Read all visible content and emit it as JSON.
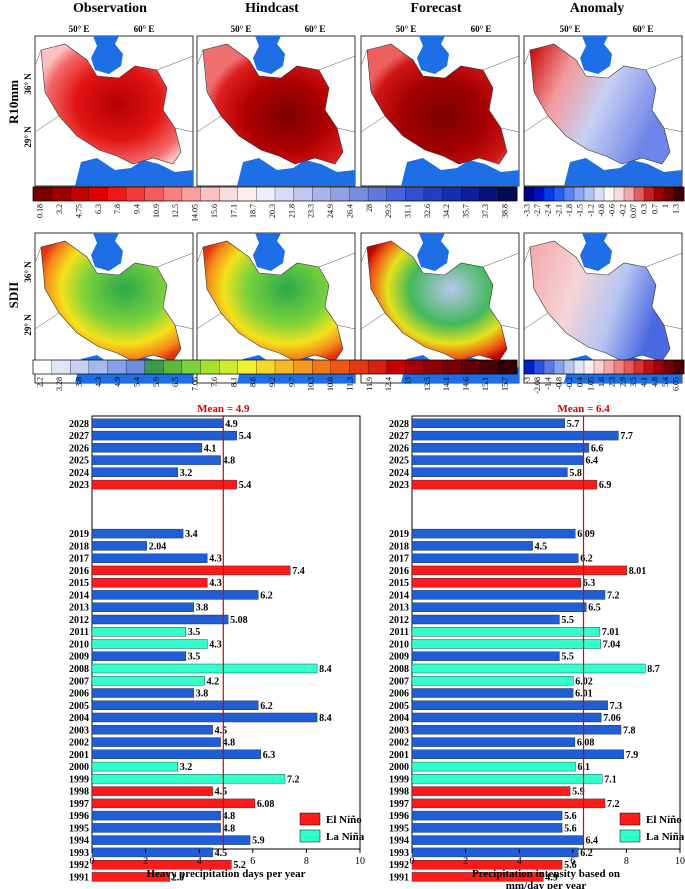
{
  "figure": {
    "column_titles": [
      "Observation",
      "Hindcast",
      "Forecast",
      "Anomaly"
    ],
    "row_labels": [
      "R10mm",
      "SDII"
    ],
    "lon_labels": [
      "50° E",
      "60° E"
    ],
    "lat_labels": [
      "36° N",
      "29° N"
    ]
  },
  "colorbars": {
    "r10mm_main": [
      "0.18",
      "3.2",
      "4.75",
      "6.3",
      "7.8",
      "9.4",
      "10.9",
      "12.5",
      "14.05",
      "15.6",
      "17.1",
      "18.7",
      "20.3",
      "21.8",
      "23.3",
      "24.9",
      "26.4",
      "28",
      "29.5",
      "31.1",
      "32.6",
      "34.2",
      "35.7",
      "37.3",
      "38.8"
    ],
    "r10mm_anomaly": [
      "-3.3",
      "-2.7",
      "-2.4",
      "-2.1",
      "-1.8",
      "-1.5",
      "-1.2",
      "-0.8",
      "-0.6",
      "-0.2",
      "0.07",
      "0.3",
      "0.7",
      "1",
      "1.3"
    ],
    "sdii_main": [
      "2.2",
      "3.28",
      "3.8",
      "4.3",
      "4.9",
      "5.4",
      "5.9",
      "6.5",
      "7.06",
      "7.6",
      "8.1",
      "8.6",
      "9.2",
      "9.7",
      "10.3",
      "10.8",
      "11.3",
      "11.9",
      "12.4",
      "13",
      "13.5",
      "14.1",
      "14.6",
      "15.1",
      "15.7"
    ],
    "sdii_anomaly": [
      "-3",
      "-2.08",
      "-1.4",
      "-0.8",
      "-0.2",
      "0.4",
      "1.05",
      "1.6",
      "2.3",
      "2.9",
      "3.5",
      "4.1",
      "4.8",
      "5.4",
      "6.05"
    ]
  },
  "colors": {
    "el_nino": "#ff1a1a",
    "la_nina": "#33ffcc",
    "normal": "#1f5ed6",
    "mean_line": "#e00000",
    "sea": "#1e6fe6"
  },
  "chart_data": [
    {
      "type": "bar",
      "orientation": "horizontal",
      "xlabel": "Heavy precipitation days per year",
      "xlim": [
        0,
        10
      ],
      "xticks": [
        "0",
        "2",
        "4",
        "6",
        "8",
        "10"
      ],
      "mean_label": "Mean = 4.9",
      "mean": 4.9,
      "legend": [
        "El Niño",
        "La Niña"
      ],
      "legend_position": "bottom-right",
      "years": [
        "2028",
        "2027",
        "2026",
        "2025",
        "2024",
        "2023",
        "2019",
        "2018",
        "2017",
        "2016",
        "2015",
        "2014",
        "2013",
        "2012",
        "2011",
        "2010",
        "2009",
        "2008",
        "2007",
        "2006",
        "2005",
        "2004",
        "2003",
        "2002",
        "2001",
        "2000",
        "1999",
        "1998",
        "1997",
        "1996",
        "1995",
        "1994",
        "1993",
        "1992",
        "1991"
      ],
      "values": [
        4.9,
        5.4,
        4.1,
        4.8,
        3.2,
        5.4,
        3.4,
        2.04,
        4.3,
        7.4,
        4.3,
        6.2,
        3.8,
        5.08,
        3.5,
        4.3,
        3.5,
        8.4,
        4.2,
        3.8,
        6.2,
        8.4,
        4.5,
        4.8,
        6.3,
        3.2,
        7.2,
        4.5,
        6.08,
        4.8,
        4.8,
        5.9,
        4.5,
        5.2,
        2.9
      ],
      "labels": [
        "4.9",
        "5.4",
        "4.1",
        "4.8",
        "3.2",
        "5.4",
        "3.4",
        "2.04",
        "4.3",
        "7.4",
        "4.3",
        "6.2",
        "3.8",
        "5.08",
        "3.5",
        "4.3",
        "3.5",
        "8.4",
        "4.2",
        "3.8",
        "6.2",
        "8.4",
        "4.5",
        "4.8",
        "6.3",
        "3.2",
        "7.2",
        "4.5",
        "6.08",
        "4.8",
        "4.8",
        "5.9",
        "4.5",
        "5.2",
        "2.9"
      ],
      "enso": [
        "n",
        "n",
        "n",
        "n",
        "n",
        "e",
        "n",
        "n",
        "n",
        "e",
        "e",
        "n",
        "n",
        "n",
        "l",
        "l",
        "n",
        "l",
        "l",
        "n",
        "n",
        "n",
        "n",
        "n",
        "n",
        "l",
        "l",
        "e",
        "e",
        "n",
        "n",
        "n",
        "n",
        "e",
        "e"
      ]
    },
    {
      "type": "bar",
      "orientation": "horizontal",
      "xlabel": "Precipitation intensity based on mm/day per year",
      "xlim": [
        0,
        10
      ],
      "xticks": [
        "0",
        "2",
        "4",
        "6",
        "8",
        "10"
      ],
      "mean_label": "Mean = 6.4",
      "mean": 6.4,
      "legend": [
        "El Niño",
        "La Niña"
      ],
      "legend_position": "bottom-right",
      "years": [
        "2028",
        "2027",
        "2026",
        "2025",
        "2024",
        "2023",
        "2019",
        "2018",
        "2017",
        "2016",
        "2015",
        "2014",
        "2013",
        "2012",
        "2011",
        "2010",
        "2009",
        "2008",
        "2007",
        "2006",
        "2005",
        "2004",
        "2003",
        "2002",
        "2001",
        "2000",
        "1999",
        "1998",
        "1997",
        "1996",
        "1995",
        "1994",
        "1993",
        "1992",
        "1991"
      ],
      "values": [
        5.7,
        7.7,
        6.6,
        6.4,
        5.8,
        6.9,
        6.09,
        4.5,
        6.2,
        8.01,
        6.3,
        7.2,
        6.5,
        5.5,
        7.01,
        7.04,
        5.5,
        8.7,
        6.02,
        6.01,
        7.3,
        7.06,
        7.8,
        6.08,
        7.9,
        6.1,
        7.1,
        5.9,
        7.2,
        5.6,
        5.6,
        6.4,
        6.2,
        5.6,
        4.9
      ],
      "labels": [
        "5.7",
        "7.7",
        "6.6",
        "6.4",
        "5.8",
        "6.9",
        "6.09",
        "4.5",
        "6.2",
        "8.01",
        "6.3",
        "7.2",
        "6.5",
        "5.5",
        "7.01",
        "7.04",
        "5.5",
        "8.7",
        "6.02",
        "6.01",
        "7.3",
        "7.06",
        "7.8",
        "6.08",
        "7.9",
        "6.1",
        "7.1",
        "5.9",
        "7.2",
        "5.6",
        "5.6",
        "6.4",
        "6.2",
        "5.6",
        "4.9"
      ],
      "enso": [
        "n",
        "n",
        "n",
        "n",
        "n",
        "e",
        "n",
        "n",
        "n",
        "e",
        "e",
        "n",
        "n",
        "n",
        "l",
        "l",
        "n",
        "l",
        "l",
        "n",
        "n",
        "n",
        "n",
        "n",
        "n",
        "l",
        "l",
        "e",
        "e",
        "n",
        "n",
        "n",
        "n",
        "e",
        "e"
      ]
    }
  ]
}
